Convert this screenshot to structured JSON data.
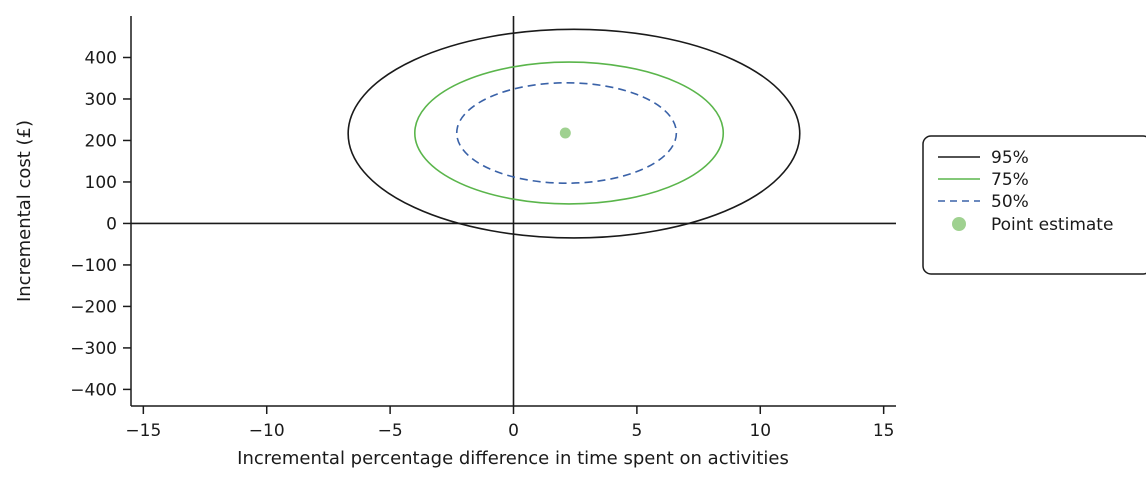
{
  "chart_data": {
    "type": "scatter",
    "xlabel": "Incremental percentage difference in time spent on activities",
    "ylabel": "Incremental cost (£)",
    "xlim": [
      -15.5,
      15.5
    ],
    "ylim": [
      -440,
      500
    ],
    "x_ticks": [
      -15,
      -10,
      -5,
      0,
      5,
      10,
      15
    ],
    "x_tick_labels": [
      "−15",
      "−10",
      "−5",
      "0",
      "5",
      "10",
      "15"
    ],
    "y_ticks": [
      400,
      300,
      200,
      100,
      0,
      -100,
      -200,
      -300,
      -400
    ],
    "y_tick_labels": [
      "400",
      "300",
      "200",
      "100",
      "0",
      "−100",
      "−200",
      "−300",
      "−400"
    ],
    "reference_lines": {
      "x": 0,
      "y": 0
    },
    "legend_position": "right",
    "series": [
      {
        "name": "95%",
        "kind": "ellipse",
        "color": "#1a1a1a",
        "dash": "solid",
        "center": [
          2.2,
          218
        ],
        "x_range": [
          -6.7,
          11.6
        ],
        "y_range": [
          -35,
          468
        ]
      },
      {
        "name": "75%",
        "kind": "ellipse",
        "color": "#5ab54b",
        "dash": "solid",
        "center": [
          2.2,
          218
        ],
        "x_range": [
          -4.0,
          8.5
        ],
        "y_range": [
          47,
          389
        ]
      },
      {
        "name": "50%",
        "kind": "ellipse",
        "color": "#3a62a8",
        "dash": "dashed",
        "center": [
          2.1,
          218
        ],
        "x_range": [
          -2.3,
          6.6
        ],
        "y_range": [
          97,
          339
        ]
      },
      {
        "name": "Point estimate",
        "kind": "point",
        "color": "#9fd190",
        "x": 2.1,
        "y": 218
      }
    ]
  }
}
